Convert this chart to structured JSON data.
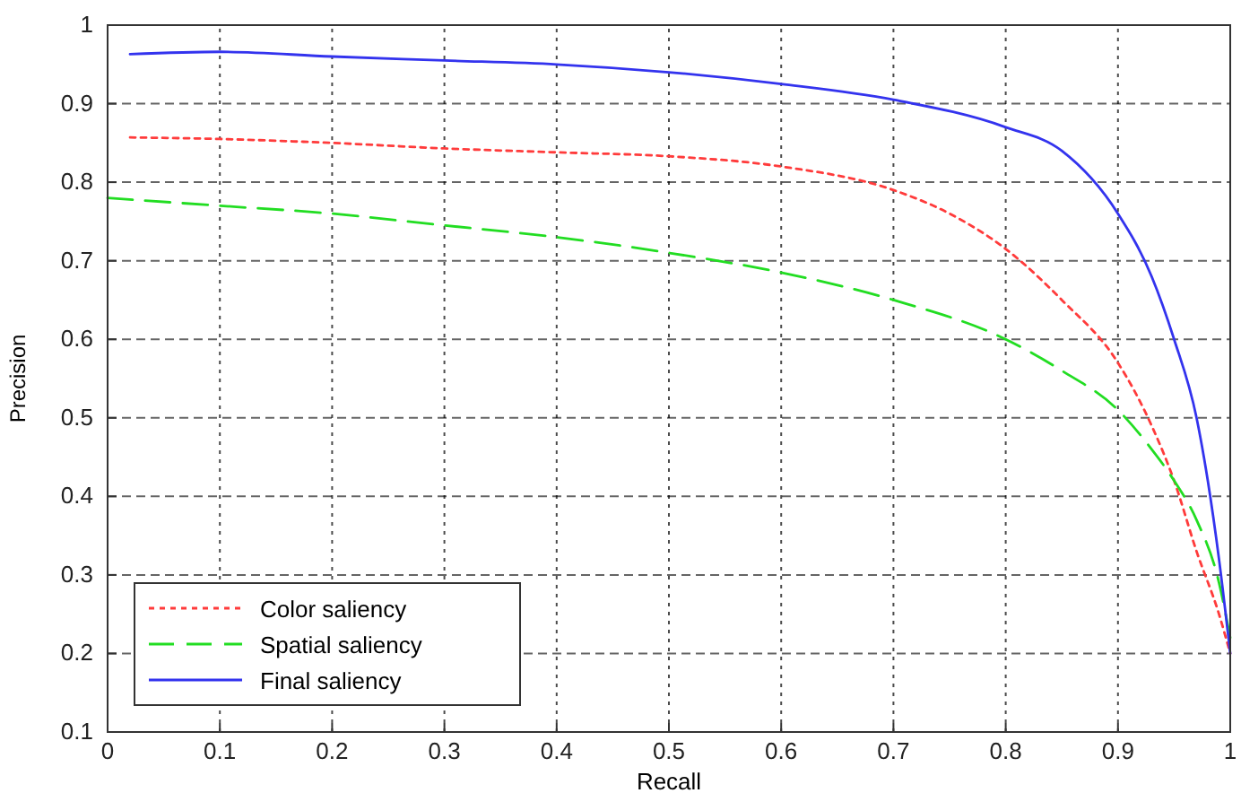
{
  "chart_data": {
    "type": "line",
    "xlabel": "Recall",
    "ylabel": "Precision",
    "xlim": [
      0,
      1
    ],
    "ylim": [
      0.1,
      1
    ],
    "xticks": [
      0,
      0.1,
      0.2,
      0.3,
      0.4,
      0.5,
      0.6,
      0.7,
      0.8,
      0.9,
      1
    ],
    "yticks": [
      0.1,
      0.2,
      0.3,
      0.4,
      0.5,
      0.6,
      0.7,
      0.8,
      0.9,
      1
    ],
    "grid": true,
    "legend": "bottom left",
    "series": [
      {
        "name": "Color saliency",
        "color": "#ff3b3b",
        "line_style": "dotted",
        "x": [
          0.02,
          0.1,
          0.2,
          0.3,
          0.4,
          0.5,
          0.6,
          0.7,
          0.75,
          0.8,
          0.85,
          0.9,
          0.93,
          0.95,
          0.97,
          0.99,
          1
        ],
        "values": [
          0.857,
          0.855,
          0.85,
          0.843,
          0.838,
          0.833,
          0.82,
          0.79,
          0.76,
          0.715,
          0.65,
          0.57,
          0.49,
          0.42,
          0.33,
          0.25,
          0.2
        ]
      },
      {
        "name": "Spatial saliency",
        "color": "#22dd22",
        "line_style": "dashed",
        "x": [
          0,
          0.1,
          0.2,
          0.3,
          0.4,
          0.5,
          0.6,
          0.7,
          0.8,
          0.85,
          0.9,
          0.93,
          0.95,
          0.97,
          0.99,
          1
        ],
        "values": [
          0.78,
          0.77,
          0.76,
          0.745,
          0.73,
          0.71,
          0.685,
          0.65,
          0.6,
          0.56,
          0.51,
          0.46,
          0.42,
          0.37,
          0.29,
          0.22
        ]
      },
      {
        "name": "Final saliency",
        "color": "#3333ee",
        "line_style": "solid",
        "x": [
          0.02,
          0.1,
          0.2,
          0.3,
          0.4,
          0.5,
          0.6,
          0.7,
          0.8,
          0.85,
          0.9,
          0.93,
          0.95,
          0.97,
          0.98,
          0.99,
          1
        ],
        "values": [
          0.963,
          0.966,
          0.96,
          0.955,
          0.95,
          0.94,
          0.925,
          0.905,
          0.87,
          0.84,
          0.76,
          0.68,
          0.6,
          0.5,
          0.42,
          0.32,
          0.2
        ]
      }
    ]
  }
}
